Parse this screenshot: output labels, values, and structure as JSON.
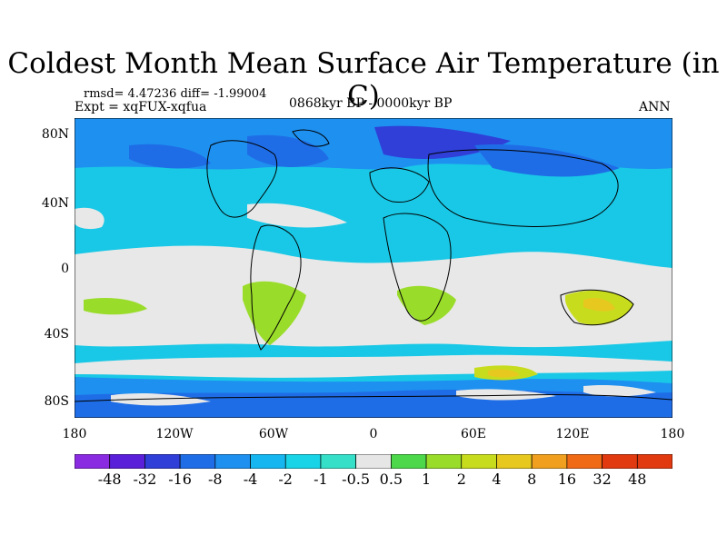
{
  "title": "Coldest Month Mean Surface Air Temperature (in C)",
  "stats": "rmsd= 4.47236 diff= -1.99004",
  "expt": "Expt = xqFUX-xqfua",
  "period": "0868kyr BP - 0000kyr BP",
  "season": "ANN",
  "lat_ticks": [
    "80N",
    "40N",
    "0",
    "40S",
    "80S"
  ],
  "lon_ticks": [
    "180",
    "120W",
    "60W",
    "0",
    "60E",
    "120E",
    "180"
  ],
  "colorbar": {
    "labels": [
      "-48",
      "-32",
      "-16",
      "-8",
      "-4",
      "-2",
      "-1",
      "-0.5",
      "0.5",
      "1",
      "2",
      "4",
      "8",
      "16",
      "32",
      "48"
    ],
    "colors": [
      "#8a2be2",
      "#5a1fd8",
      "#2f3fd8",
      "#1f6de6",
      "#1e90f0",
      "#16b6f0",
      "#19d4e6",
      "#36e0c8",
      "#e6e6e6",
      "#4cd84a",
      "#9adc2a",
      "#c8dc1e",
      "#e6c81e",
      "#f0a01e",
      "#f06a16",
      "#e23a10"
    ]
  }
}
